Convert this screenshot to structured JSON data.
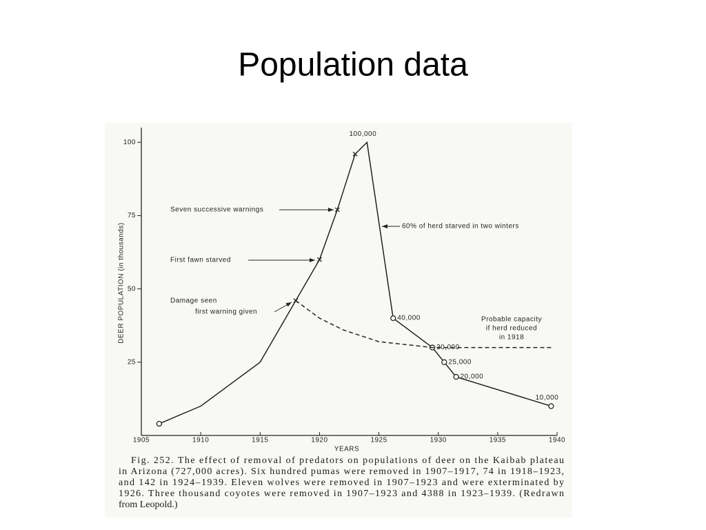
{
  "title": "Population data",
  "chart_data": {
    "type": "line",
    "x_label": "YEARS",
    "y_label": "DEER POPULATION (in thousands)",
    "xlim": [
      1905,
      1940
    ],
    "xticks": [
      1905,
      1910,
      1915,
      1920,
      1925,
      1930,
      1935,
      1940
    ],
    "ylim": [
      0,
      105
    ],
    "yticks": [
      25,
      50,
      75,
      100
    ],
    "series": [
      {
        "color": "#222222",
        "dash": false,
        "x": [
          1906.5,
          1910,
          1915,
          1918,
          1920,
          1921.5,
          1923,
          1924,
          1926.2,
          1929.5,
          1930.5,
          1931.5,
          1939.5
        ],
        "values": [
          4,
          10,
          25,
          46,
          60,
          77,
          96,
          100,
          40,
          30,
          25,
          20,
          10
        ],
        "markers": [
          "o",
          null,
          null,
          "x",
          "x",
          "x",
          "x",
          null,
          "o",
          "o",
          "o",
          "o",
          "o"
        ],
        "value_labels": [
          null,
          null,
          null,
          null,
          null,
          null,
          null,
          "100,000",
          "40,000",
          "30,000",
          "25,000",
          "20,000",
          "10,000"
        ]
      },
      {
        "color": "#222222",
        "dash": true,
        "x": [
          1918,
          1920,
          1922,
          1925,
          1929.5,
          1939.5
        ],
        "values": [
          46,
          40,
          36,
          32,
          30,
          30
        ]
      }
    ],
    "annotations": [
      "Seven successive warnings",
      "First fawn starved",
      "Damage seen",
      "first warning given",
      "60% of herd starved in two winters",
      "Probable capacity",
      "if herd reduced",
      "in 1918"
    ],
    "caption": [
      "Fig. 252. The effect of removal of predators on populations of deer on the Kaibab plateau",
      "in Arizona (727,000 acres). Six hundred pumas were removed in 1907–1917, 74 in 1918–1923,",
      "and 142 in 1924–1939. Eleven wolves were removed in 1907–1923 and were exterminated by",
      "1926. Three thousand coyotes were removed in 1907–1923 and 4388 in 1923–1939. (Redrawn",
      "from Leopold.)"
    ]
  }
}
